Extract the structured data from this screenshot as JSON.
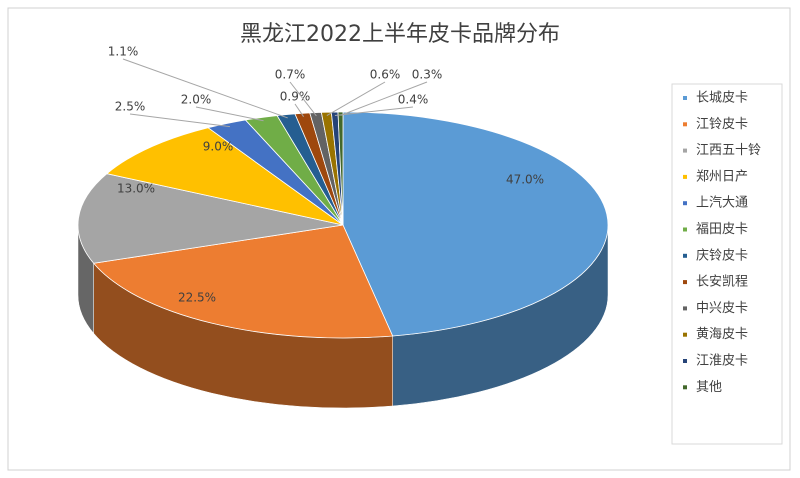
{
  "chart_data": {
    "type": "pie3d",
    "title": "黑龙江2022上半年皮卡品牌分布",
    "categories": [
      "长城皮卡",
      "江铃皮卡",
      "江西五十铃",
      "郑州日产",
      "上汽大通",
      "福田皮卡",
      "庆铃皮卡",
      "长安凯程",
      "中兴皮卡",
      "黄海皮卡",
      "江淮皮卡",
      "其他"
    ],
    "values": [
      47.0,
      22.5,
      13.0,
      9.0,
      2.5,
      2.0,
      1.1,
      0.9,
      0.7,
      0.6,
      0.4,
      0.3
    ],
    "value_labels": [
      "47.0%",
      "22.5%",
      "13.0%",
      "9.0%",
      "2.5%",
      "2.0%",
      "1.1%",
      "0.9%",
      "0.7%",
      "0.6%",
      "0.4%",
      "0.3%"
    ],
    "colors": [
      "#5b9bd5",
      "#ed7d31",
      "#a5a5a5",
      "#ffc000",
      "#4472c4",
      "#70ad47",
      "#255e91",
      "#9e480e",
      "#636363",
      "#997300",
      "#264478",
      "#43682b"
    ],
    "legend": "right"
  }
}
